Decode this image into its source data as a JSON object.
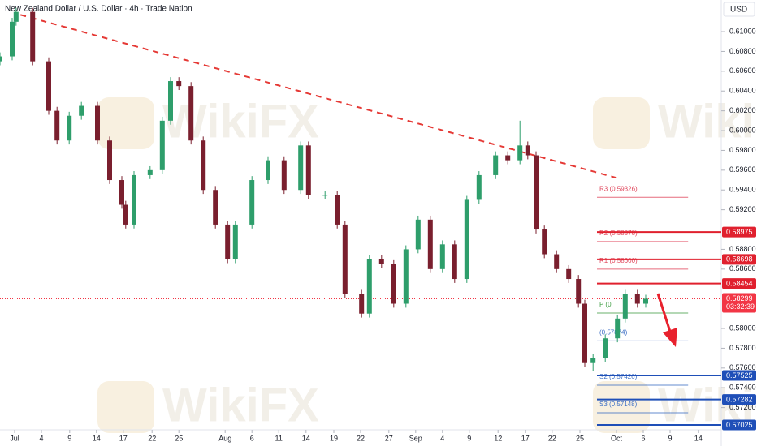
{
  "chart_data": {
    "type": "candlestick",
    "title": "New Zealand Dollar / U.S. Dollar · 4h · Trade Nation",
    "currency": "USD",
    "watermark": "WikiFX",
    "up_color": "#2e9e6b",
    "down_color": "#7a1f2e",
    "grid": false,
    "xlim": [
      0,
      148
    ],
    "ylim": [
      0.5691,
      0.6132
    ],
    "xticks": [
      {
        "value": 3,
        "label": "Jul"
      },
      {
        "value": 8.5,
        "label": "4"
      },
      {
        "value": 14.3,
        "label": "9"
      },
      {
        "value": 19.8,
        "label": "14"
      },
      {
        "value": 25.3,
        "label": "17"
      },
      {
        "value": 31.2,
        "label": "22"
      },
      {
        "value": 36.7,
        "label": "25"
      },
      {
        "value": 46.2,
        "label": "Aug"
      },
      {
        "value": 51.7,
        "label": "6"
      },
      {
        "value": 57.2,
        "label": "11"
      },
      {
        "value": 62.8,
        "label": "14"
      },
      {
        "value": 68.5,
        "label": "19"
      },
      {
        "value": 74,
        "label": "22"
      },
      {
        "value": 79.8,
        "label": "27"
      },
      {
        "value": 85.3,
        "label": "Sep"
      },
      {
        "value": 90.8,
        "label": "4"
      },
      {
        "value": 96.3,
        "label": "9"
      },
      {
        "value": 102.2,
        "label": "12"
      },
      {
        "value": 107.8,
        "label": "17"
      },
      {
        "value": 113.3,
        "label": "22"
      },
      {
        "value": 119,
        "label": "25"
      },
      {
        "value": 126.5,
        "label": "Oct"
      },
      {
        "value": 132,
        "label": "6"
      },
      {
        "value": 137.5,
        "label": "9"
      },
      {
        "value": 143.3,
        "label": "14"
      }
    ],
    "yticks": [
      {
        "value": 0.61,
        "label": "0.61000"
      },
      {
        "value": 0.608,
        "label": "0.60800"
      },
      {
        "value": 0.606,
        "label": "0.60600"
      },
      {
        "value": 0.604,
        "label": "0.60400"
      },
      {
        "value": 0.602,
        "label": "0.60200"
      },
      {
        "value": 0.6,
        "label": "0.60000"
      },
      {
        "value": 0.598,
        "label": "0.59800"
      },
      {
        "value": 0.596,
        "label": "0.59600"
      },
      {
        "value": 0.594,
        "label": "0.59400"
      },
      {
        "value": 0.592,
        "label": "0.59200"
      },
      {
        "value": 0.588,
        "label": "0.58800"
      },
      {
        "value": 0.586,
        "label": "0.58600"
      },
      {
        "value": 0.58,
        "label": "0.58000"
      },
      {
        "value": 0.578,
        "label": "0.57800"
      },
      {
        "value": 0.576,
        "label": "0.57600"
      },
      {
        "value": 0.574,
        "label": "0.57400"
      },
      {
        "value": 0.572,
        "label": "0.57200"
      }
    ],
    "x": [
      0,
      2.5,
      3.3,
      6.7,
      10,
      11.7,
      14.2,
      16.7,
      20,
      22.5,
      25,
      25.8,
      27.5,
      30.8,
      33.3,
      35,
      36.7,
      39.2,
      41.7,
      44.2,
      46.7,
      48.3,
      51.7,
      55,
      58.3,
      61.7,
      63.3,
      66.7,
      69.2,
      70.8,
      74.2,
      75.8,
      78.3,
      80.8,
      83.3,
      85.8,
      88.3,
      90.8,
      93.3,
      95.8,
      98.3,
      101.7,
      104.2,
      106.7,
      108.3,
      110,
      111.7,
      114.2,
      116.7,
      118.7,
      120,
      121.7,
      124.2,
      126.7,
      128.3,
      130.8,
      132.5
    ],
    "open": [
      0.607,
      0.6075,
      0.611,
      0.612,
      0.607,
      0.602,
      0.599,
      0.6015,
      0.6025,
      0.599,
      0.595,
      0.5925,
      0.5905,
      0.5955,
      0.596,
      0.601,
      0.605,
      0.6045,
      0.599,
      0.594,
      0.5905,
      0.587,
      0.5905,
      0.595,
      0.597,
      0.594,
      0.5985,
      0.5935,
      0.5935,
      0.5905,
      0.5835,
      0.5815,
      0.587,
      0.5865,
      0.5825,
      0.588,
      0.591,
      0.586,
      0.5885,
      0.585,
      0.593,
      0.5955,
      0.5975,
      0.597,
      0.5985,
      0.5975,
      0.59,
      0.5875,
      0.586,
      0.585,
      0.5825,
      0.5765,
      0.577,
      0.579,
      0.581,
      0.5835,
      0.5825
    ],
    "high": [
      0.6079,
      0.6114,
      0.6124,
      0.6124,
      0.6074,
      0.6024,
      0.6019,
      0.6029,
      0.6029,
      0.5994,
      0.5954,
      0.5929,
      0.5959,
      0.5964,
      0.6014,
      0.6054,
      0.6054,
      0.6049,
      0.5994,
      0.5944,
      0.5909,
      0.5909,
      0.5954,
      0.5974,
      0.5974,
      0.5989,
      0.5989,
      0.5939,
      0.5939,
      0.5909,
      0.5839,
      0.5874,
      0.5874,
      0.5869,
      0.5884,
      0.5914,
      0.5914,
      0.5889,
      0.5889,
      0.5934,
      0.5959,
      0.5979,
      0.5979,
      0.601,
      0.5989,
      0.5979,
      0.5904,
      0.5879,
      0.5864,
      0.5854,
      0.5829,
      0.5774,
      0.5794,
      0.5814,
      0.5839,
      0.5839,
      0.5834
    ],
    "low": [
      0.6066,
      0.6071,
      0.6106,
      0.6066,
      0.6016,
      0.5986,
      0.5986,
      0.6011,
      0.5986,
      0.5946,
      0.5921,
      0.5901,
      0.5901,
      0.5951,
      0.5956,
      0.6006,
      0.6041,
      0.5986,
      0.5936,
      0.5901,
      0.5866,
      0.5866,
      0.5901,
      0.5946,
      0.5936,
      0.5936,
      0.5931,
      0.5931,
      0.5901,
      0.5831,
      0.5811,
      0.5811,
      0.5861,
      0.5821,
      0.5821,
      0.5876,
      0.5856,
      0.5856,
      0.5846,
      0.5846,
      0.5926,
      0.5951,
      0.5966,
      0.5966,
      0.5971,
      0.5896,
      0.5871,
      0.5856,
      0.5846,
      0.5821,
      0.5761,
      0.5757,
      0.5766,
      0.5786,
      0.5806,
      0.5821,
      0.5821
    ],
    "close": [
      0.6075,
      0.611,
      0.612,
      0.607,
      0.602,
      0.599,
      0.6015,
      0.6025,
      0.599,
      0.595,
      0.5925,
      0.5905,
      0.5955,
      0.596,
      0.601,
      0.605,
      0.6045,
      0.599,
      0.594,
      0.5905,
      0.587,
      0.5905,
      0.595,
      0.597,
      0.594,
      0.5985,
      0.5935,
      0.5935,
      0.5905,
      0.5835,
      0.5815,
      0.587,
      0.5865,
      0.5825,
      0.588,
      0.591,
      0.586,
      0.5885,
      0.585,
      0.593,
      0.5955,
      0.5975,
      0.597,
      0.5985,
      0.5975,
      0.59,
      0.5875,
      0.586,
      0.585,
      0.5825,
      0.5765,
      0.577,
      0.579,
      0.581,
      0.5835,
      0.5825,
      0.583
    ],
    "trendline": {
      "x": [
        4.2,
        126.7
      ],
      "y": [
        0.6117,
        0.5952
      ],
      "color": "#e53935"
    },
    "pivots": {
      "xrange": [
        122.5,
        141.2
      ],
      "levels": [
        {
          "label": "R3 (0.59326)",
          "value": 0.59326,
          "color": "#e0475c"
        },
        {
          "label": "R2 (0.58878)",
          "value": 0.58878,
          "color": "#e0475c"
        },
        {
          "label": "R1 (0.58600)",
          "value": 0.586,
          "color": "#e0475c"
        },
        {
          "label": "P (0.",
          "value": 0.58156,
          "color": "#43a047"
        },
        {
          "label": "(0.57874)",
          "value": 0.57874,
          "color": "#3d6fc4"
        },
        {
          "label": "S2 (0.57426)",
          "value": 0.57426,
          "color": "#3d6fc4"
        },
        {
          "label": "S3 (0.57148)",
          "value": 0.57148,
          "color": "#3d6fc4"
        }
      ]
    },
    "levels": {
      "start": 122.5,
      "items": [
        {
          "value": 0.58975,
          "color": "#e0202e"
        },
        {
          "value": 0.58698,
          "color": "#e0202e"
        },
        {
          "value": 0.58454,
          "color": "#e0202e"
        },
        {
          "value": 0.57525,
          "color": "#1f4fb8"
        },
        {
          "value": 0.57282,
          "color": "#1f4fb8"
        },
        {
          "value": 0.57025,
          "color": "#1f4fb8"
        }
      ]
    },
    "last_price": {
      "value": 0.58299,
      "countdown": "03:32:39",
      "color": "#f23645"
    }
  }
}
